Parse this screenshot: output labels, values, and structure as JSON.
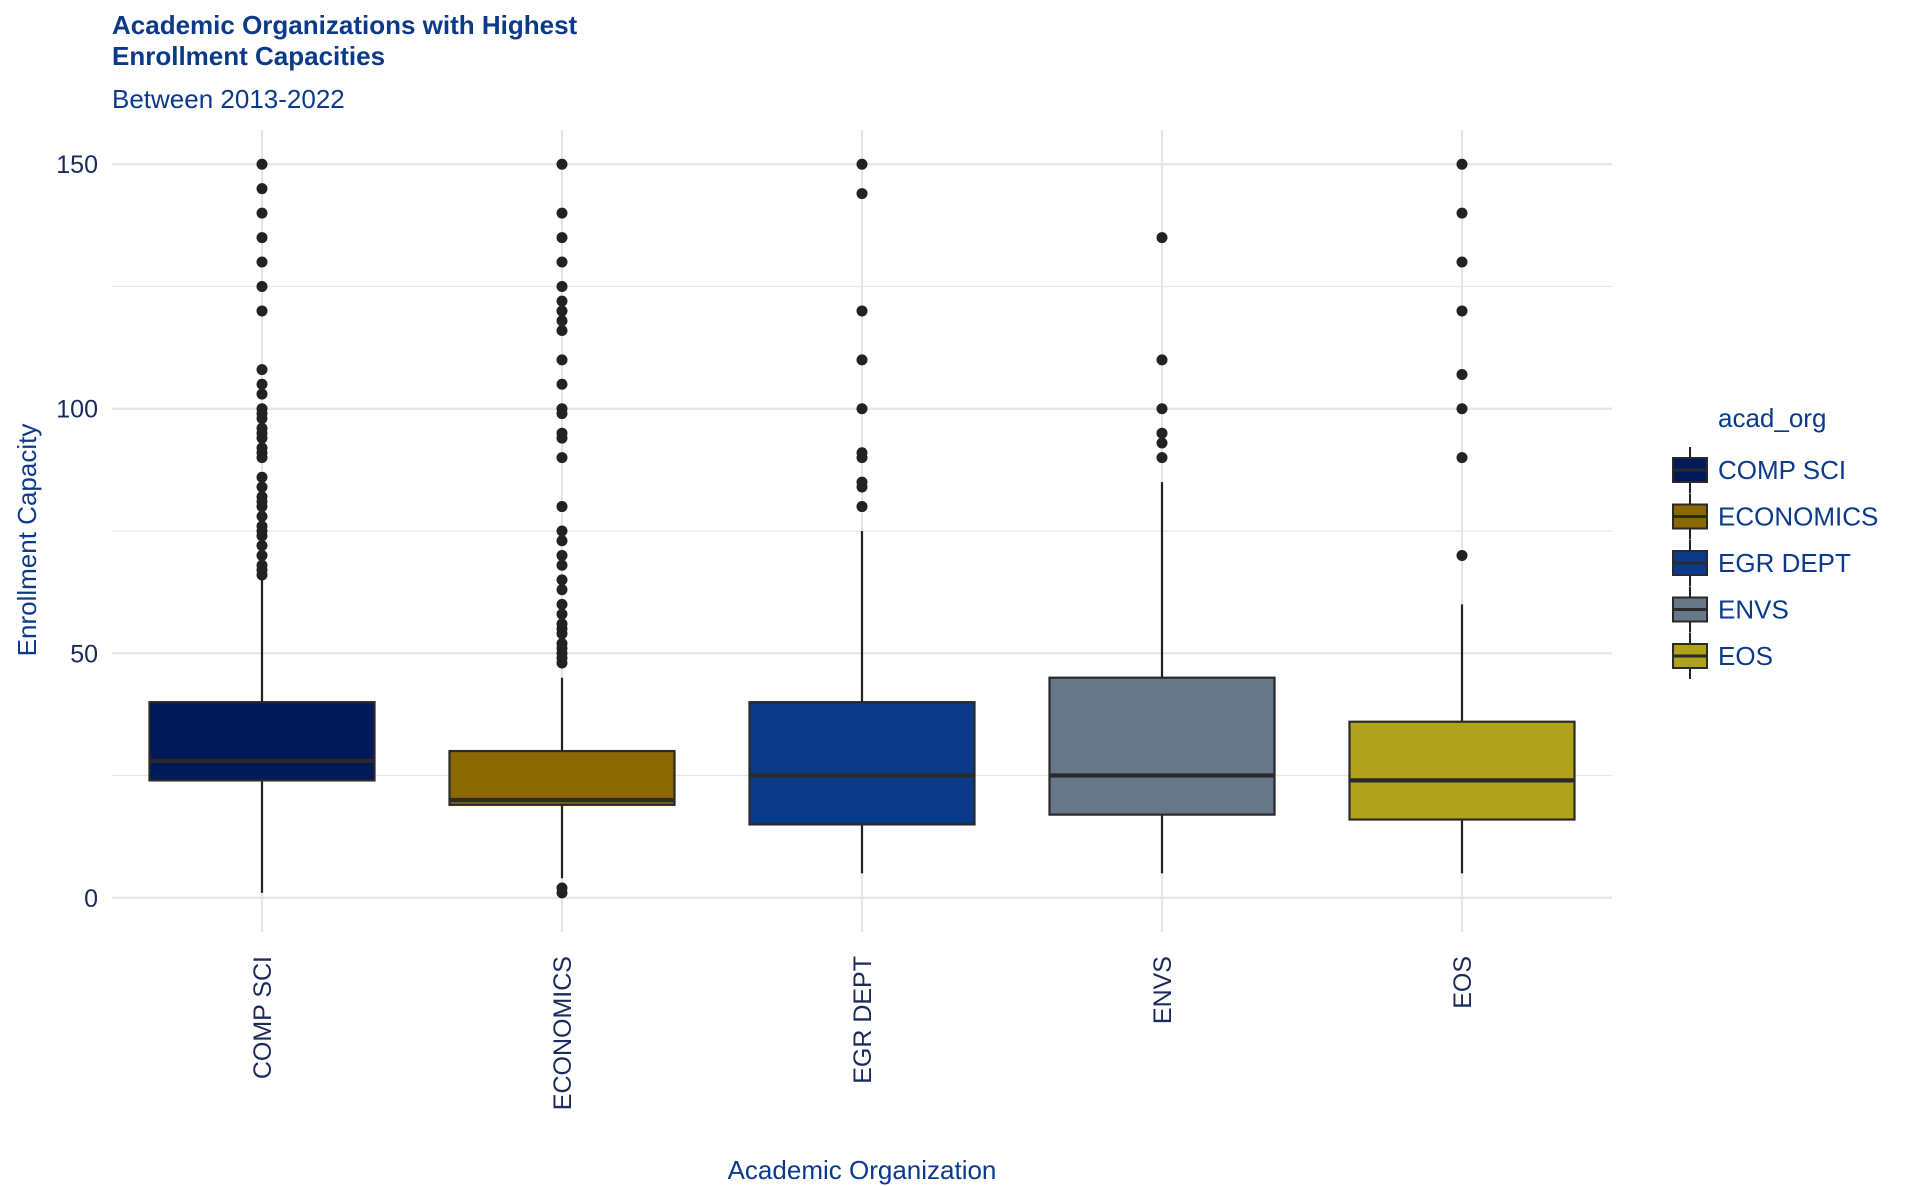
{
  "chart_data": {
    "type": "boxplot",
    "title": "Academic Organizations with Highest Enrollment Capacities",
    "subtitle": "Between 2013-2022",
    "xlabel": "Academic Organization",
    "ylabel": "Enrollment Capacity",
    "ylim": [
      -7,
      157
    ],
    "yticks": [
      0,
      50,
      100,
      150
    ],
    "grid": true,
    "legend": {
      "title": "acad_org",
      "placement": "right"
    },
    "categories": [
      "COMP SCI",
      "ECONOMICS",
      "EGR DEPT",
      "ENVS",
      "EOS"
    ],
    "series": [
      {
        "name": "COMP SCI",
        "color": "#001a57",
        "whisker_low": 1,
        "q1": 24,
        "median": 28,
        "q3": 40,
        "whisker_high": 65,
        "outliers": [
          66,
          67,
          68,
          70,
          72,
          74,
          75,
          76,
          78,
          80,
          81,
          82,
          84,
          86,
          90,
          91,
          92,
          94,
          95,
          96,
          98,
          99,
          100,
          103,
          105,
          108,
          120,
          125,
          130,
          135,
          140,
          145,
          150
        ]
      },
      {
        "name": "ECONOMICS",
        "color": "#8c6800",
        "whisker_low": 4,
        "q1": 19,
        "median": 20,
        "q3": 30,
        "whisker_high": 45,
        "outliers": [
          1,
          2,
          48,
          49,
          50,
          51,
          52,
          54,
          55,
          56,
          58,
          60,
          63,
          65,
          68,
          70,
          73,
          75,
          80,
          90,
          94,
          95,
          99,
          100,
          105,
          110,
          116,
          118,
          120,
          122,
          125,
          130,
          135,
          140,
          150
        ]
      },
      {
        "name": "EGR DEPT",
        "color": "#0b3a8a",
        "whisker_low": 5,
        "q1": 15,
        "median": 25,
        "q3": 40,
        "whisker_high": 75,
        "outliers": [
          80,
          84,
          85,
          90,
          91,
          100,
          110,
          120,
          144,
          150
        ]
      },
      {
        "name": "ENVS",
        "color": "#667788",
        "whisker_low": 5,
        "q1": 17,
        "median": 25,
        "q3": 45,
        "whisker_high": 85,
        "outliers": [
          90,
          93,
          95,
          100,
          110,
          135
        ]
      },
      {
        "name": "EOS",
        "color": "#b0a31b",
        "whisker_low": 5,
        "q1": 16,
        "median": 24,
        "q3": 36,
        "whisker_high": 60,
        "outliers": [
          70,
          90,
          100,
          107,
          120,
          130,
          140,
          150
        ]
      }
    ]
  }
}
